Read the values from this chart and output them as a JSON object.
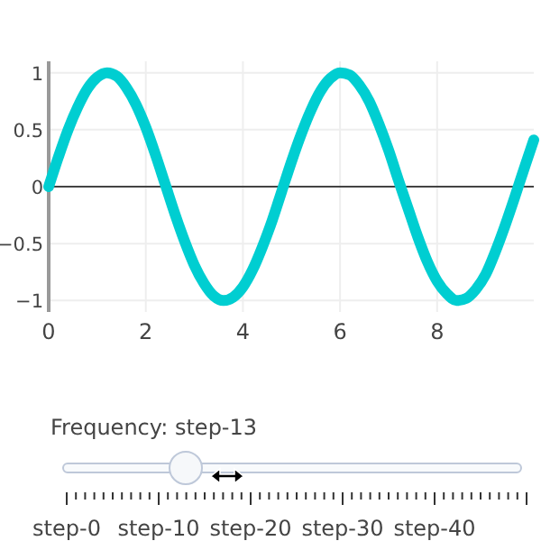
{
  "chart_data": {
    "type": "line",
    "x": [
      0,
      0.2,
      0.4,
      0.6,
      0.8,
      1,
      1.2,
      1.4,
      1.6,
      1.8,
      2,
      2.2,
      2.4,
      2.6,
      2.8,
      3,
      3.2,
      3.4,
      3.6,
      3.8,
      4,
      4.2,
      4.4,
      4.6,
      4.8,
      5,
      5.2,
      5.4,
      5.6,
      5.8,
      6,
      6.2,
      6.4,
      6.6,
      6.8,
      7,
      7.2,
      7.4,
      7.6,
      7.8,
      8,
      8.2,
      8.4,
      8.6,
      8.8,
      9,
      9.2,
      9.4,
      9.6,
      9.8,
      9.99
    ],
    "series": [
      {
        "color": "#00ced1",
        "values": [
          0,
          0.26,
          0.5,
          0.7,
          0.86,
          0.96,
          1,
          0.97,
          0.87,
          0.72,
          0.52,
          0.28,
          0.02,
          -0.24,
          -0.48,
          -0.69,
          -0.85,
          -0.96,
          -1,
          -0.97,
          -0.88,
          -0.73,
          -0.53,
          -0.3,
          -0.04,
          0.22,
          0.46,
          0.67,
          0.84,
          0.95,
          1,
          0.98,
          0.89,
          0.75,
          0.55,
          0.32,
          0.06,
          -0.19,
          -0.44,
          -0.66,
          -0.83,
          -0.94,
          -1,
          -0.98,
          -0.9,
          -0.77,
          -0.57,
          -0.34,
          -0.09,
          0.17,
          0.41
        ]
      }
    ],
    "xlim": [
      0,
      9.99
    ],
    "ylim": [
      -1.1,
      1.1
    ],
    "xticks": [
      0,
      2,
      4,
      6,
      8
    ],
    "yticks": [
      {
        "value": -1,
        "label": "−1"
      },
      {
        "value": -0.5,
        "label": "−0.5"
      },
      0,
      0.5,
      1
    ],
    "grid": true,
    "marker": "none",
    "line_style": "solid",
    "annotations": [
      "Frequency: step-13",
      "step-0",
      "step-10",
      "step-20",
      "step-30",
      "step-40"
    ]
  }
}
